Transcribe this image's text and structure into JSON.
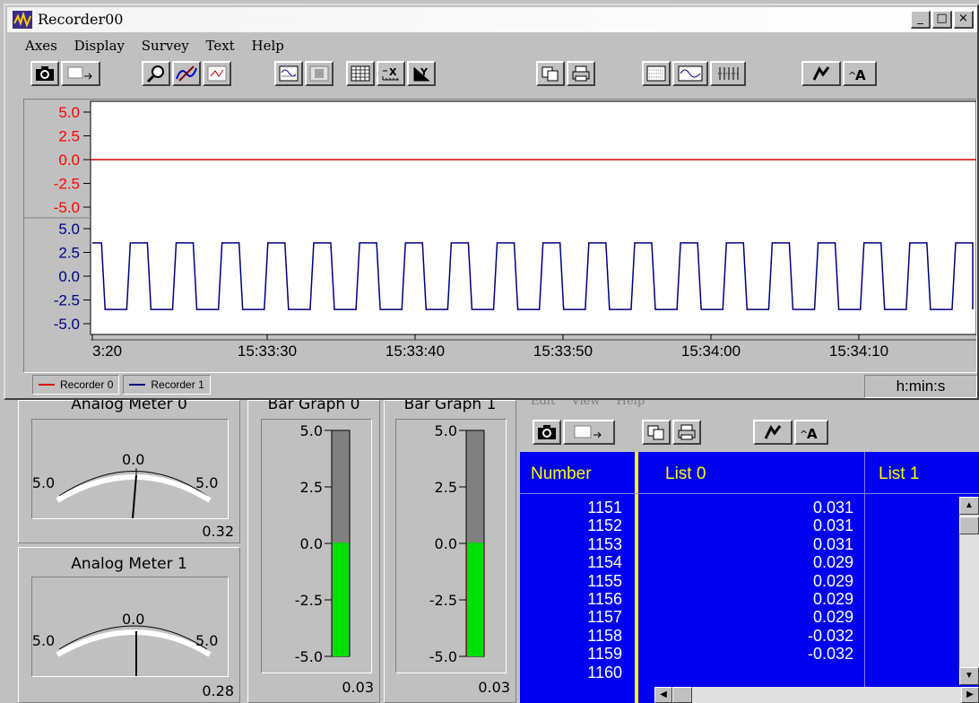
{
  "recorder_window": {
    "title": "Recorder00",
    "menu": [
      "Axes",
      "Display",
      "Survey",
      "Text",
      "Help"
    ],
    "caption_buttons": [
      "_",
      "□",
      "×"
    ],
    "toolbar_icons": [
      "snapshot-camera-icon",
      "export-icon",
      "zoom-icon",
      "cursor-measure-icon",
      "clear-data-icon",
      "trigger-icon",
      "stop-icon",
      "grid-icon",
      "x-scale-icon",
      "y-scale-icon",
      "copy-icon",
      "print-icon",
      "pattern-icon",
      "waveform-icon",
      "columns-icon",
      "properties-icon",
      "font-icon"
    ],
    "legend": [
      {
        "name": "Recorder 0",
        "color": "#e00000"
      },
      {
        "name": "Recorder 1",
        "color": "#000080"
      }
    ],
    "time_units": "h:min:s"
  },
  "chart_data": {
    "type": "line",
    "x_ticks": [
      "3:20",
      "15:33:30",
      "15:33:40",
      "15:33:50",
      "15:34:00",
      "15:34:10"
    ],
    "panes": [
      {
        "series": "Recorder 0",
        "color": "#e00000",
        "y_ticks": [
          "5.0",
          "2.5",
          "0.0",
          "-2.5",
          "-5.0"
        ],
        "ylim": [
          -5,
          5
        ],
        "tick_color": "#ff0000",
        "values_note": "constant",
        "y": 0.0
      },
      {
        "series": "Recorder 1",
        "color": "#000080",
        "y_ticks": [
          "5.0",
          "2.5",
          "0.0",
          "-2.5",
          "-5.0"
        ],
        "ylim": [
          -5,
          5
        ],
        "tick_color": "#000080",
        "square_wave": {
          "high": 3.5,
          "low": -3.5,
          "cycles": 19
        }
      }
    ],
    "grid": false
  },
  "analog_meters": [
    {
      "title": "Analog Meter 0",
      "min": "-5.0",
      "mid": "0.0",
      "max": "5.0",
      "value": "0.32"
    },
    {
      "title": "Analog Meter 1",
      "min": "-5.0",
      "mid": "0.0",
      "max": "5.0",
      "value": "0.28"
    }
  ],
  "bar_graphs": [
    {
      "title": "Bar Graph 0",
      "ticks": [
        "5.0",
        "2.5",
        "0.0",
        "-2.5",
        "-5.0"
      ],
      "value": "0.03",
      "level": 0.03
    },
    {
      "title": "Bar Graph 1",
      "ticks": [
        "5.0",
        "2.5",
        "0.0",
        "-2.5",
        "-5.0"
      ],
      "value": "0.03",
      "level": 0.03
    }
  ],
  "list_window": {
    "menu": [
      "Edit",
      "View",
      "Help"
    ],
    "columns": [
      "Number",
      "List 0",
      "List 1"
    ],
    "rows": [
      [
        "1151",
        "0.031"
      ],
      [
        "1152",
        "0.031"
      ],
      [
        "1153",
        "0.031"
      ],
      [
        "1154",
        "0.029"
      ],
      [
        "1155",
        "0.029"
      ],
      [
        "1156",
        "0.029"
      ],
      [
        "1157",
        "0.029"
      ],
      [
        "1158",
        "-0.032"
      ],
      [
        "1159",
        "-0.032"
      ],
      [
        "1160",
        ""
      ]
    ],
    "colors": {
      "background": "#0000f0",
      "header": "#ffff00",
      "text": "#ffffff"
    }
  }
}
